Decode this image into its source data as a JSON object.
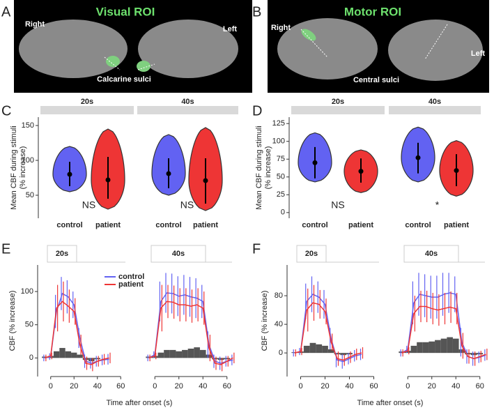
{
  "images": [
    {
      "label": "A",
      "title": "Visual ROI",
      "left": "Right",
      "right": "Left",
      "caption": "Calcarine sulci"
    },
    {
      "label": "B",
      "title": "Motor ROI",
      "left": "Right",
      "right": "Left",
      "caption": "Central sulci"
    }
  ],
  "chart_data": [
    {
      "type": "violin",
      "label": "C",
      "ylabel": [
        "Mean CBF during stimuli",
        "(% increase)"
      ],
      "ylim": [
        17,
        162
      ],
      "yticks": [
        50,
        100,
        150
      ],
      "facets": [
        {
          "title": "20s",
          "categories": [
            "control",
            "patient"
          ],
          "annotation": "NS",
          "violins": [
            {
              "color": "#6262f2",
              "min": 55,
              "max": 120,
              "mean": 80,
              "low": 63,
              "high": 98
            },
            {
              "color": "#ee3535",
              "min": 30,
              "max": 145,
              "mean": 72,
              "low": 45,
              "high": 105
            }
          ]
        },
        {
          "title": "40s",
          "categories": [
            "control",
            "patient"
          ],
          "annotation": "NS",
          "violins": [
            {
              "color": "#6262f2",
              "min": 50,
              "max": 137,
              "mean": 81,
              "low": 60,
              "high": 103
            },
            {
              "color": "#ee3535",
              "min": 28,
              "max": 147,
              "mean": 71,
              "low": 38,
              "high": 103
            }
          ]
        }
      ]
    },
    {
      "type": "violin",
      "label": "D",
      "ylabel": [
        "Mean CBF during stimuli",
        "(% increase)"
      ],
      "ylim": [
        -8,
        134
      ],
      "yticks": [
        0,
        25,
        50,
        75,
        100,
        125
      ],
      "facets": [
        {
          "title": "20s",
          "categories": [
            "control",
            "patient"
          ],
          "annotation": "NS",
          "violins": [
            {
              "color": "#6262f2",
              "min": 43,
              "max": 112,
              "mean": 70,
              "low": 48,
              "high": 92
            },
            {
              "color": "#ee3535",
              "min": 28,
              "max": 88,
              "mean": 58,
              "low": 42,
              "high": 76
            }
          ]
        },
        {
          "title": "40s",
          "categories": [
            "control",
            "patient"
          ],
          "annotation": "*",
          "violins": [
            {
              "color": "#6262f2",
              "min": 43,
              "max": 120,
              "mean": 77,
              "low": 55,
              "high": 98
            },
            {
              "color": "#ee3535",
              "min": 23,
              "max": 101,
              "mean": 59,
              "low": 37,
              "high": 82
            }
          ]
        }
      ]
    },
    {
      "type": "timecourse",
      "label": "E",
      "ylabel": "CBF (%  increase)",
      "xlabel": "Time after onset (s)",
      "xlim": [
        -10,
        70
      ],
      "xticks": [
        0,
        20,
        40,
        60
      ],
      "ylim": [
        -28,
        140
      ],
      "yticks": [
        0,
        50,
        100
      ],
      "legend": true,
      "bar_color": "#555555",
      "series": [
        {
          "name": "control",
          "color": "#6262f2"
        },
        {
          "name": "patient",
          "color": "#ee3535"
        }
      ],
      "facets": [
        {
          "title": "20s",
          "x": [
            -5,
            0,
            5,
            10,
            15,
            20,
            25,
            30,
            35,
            40,
            45,
            50
          ],
          "lines": [
            {
              "values": [
                0,
                2,
                70,
                97,
                92,
                80,
                30,
                -5,
                -8,
                -5,
                -3,
                -2
              ],
              "errors": [
                5,
                5,
                25,
                25,
                25,
                20,
                15,
                10,
                8,
                8,
                8,
                8
              ]
            },
            {
              "values": [
                0,
                3,
                75,
                85,
                78,
                70,
                20,
                -8,
                -10,
                -5,
                -2,
                0
              ],
              "errors": [
                5,
                5,
                35,
                30,
                25,
                20,
                15,
                10,
                10,
                8,
                8,
                8
              ]
            }
          ],
          "bars": [
            2,
            3,
            10,
            15,
            10,
            8,
            5,
            -3,
            -5,
            -2,
            0,
            0
          ]
        },
        {
          "title": "40s",
          "x": [
            -5,
            0,
            5,
            10,
            15,
            20,
            25,
            30,
            35,
            40,
            45,
            50,
            55,
            60,
            65
          ],
          "lines": [
            {
              "values": [
                0,
                5,
                85,
                98,
                97,
                93,
                95,
                92,
                90,
                85,
                20,
                -5,
                -8,
                -5,
                -3
              ],
              "errors": [
                5,
                5,
                30,
                30,
                30,
                30,
                30,
                30,
                30,
                25,
                20,
                10,
                10,
                8,
                8
              ]
            },
            {
              "values": [
                0,
                3,
                75,
                85,
                84,
                80,
                80,
                78,
                80,
                75,
                15,
                -8,
                -10,
                -5,
                0
              ],
              "errors": [
                5,
                5,
                35,
                25,
                25,
                25,
                25,
                25,
                25,
                25,
                20,
                10,
                10,
                8,
                8
              ]
            }
          ],
          "bars": [
            2,
            3,
            8,
            12,
            12,
            10,
            12,
            14,
            16,
            12,
            5,
            -2,
            -3,
            -2,
            0
          ]
        }
      ]
    },
    {
      "type": "timecourse",
      "label": "F",
      "ylabel": "CBF (%  increase)",
      "xlabel": "Time after onset (s)",
      "xlim": [
        -10,
        70
      ],
      "xticks": [
        0,
        20,
        40,
        60
      ],
      "ylim": [
        -33,
        123
      ],
      "yticks": [
        0,
        40,
        80
      ],
      "legend": false,
      "bar_color": "#555555",
      "series": [
        {
          "color": "#6262f2"
        },
        {
          "color": "#ee3535"
        }
      ],
      "facets": [
        {
          "title": "20s",
          "x": [
            -5,
            0,
            5,
            10,
            15,
            20,
            25,
            30,
            35,
            40,
            45,
            50
          ],
          "lines": [
            {
              "values": [
                0,
                2,
                72,
                82,
                78,
                68,
                20,
                -10,
                -12,
                -8,
                -4,
                -2
              ],
              "errors": [
                5,
                5,
                25,
                25,
                22,
                20,
                15,
                10,
                10,
                8,
                8,
                8
              ]
            },
            {
              "values": [
                0,
                2,
                60,
                70,
                68,
                58,
                15,
                -8,
                -10,
                -6,
                -2,
                0
              ],
              "errors": [
                5,
                5,
                30,
                25,
                20,
                18,
                12,
                10,
                8,
                8,
                8,
                8
              ]
            }
          ],
          "bars": [
            1,
            2,
            10,
            14,
            12,
            10,
            5,
            -2,
            -3,
            -2,
            0,
            0
          ]
        },
        {
          "title": "40s",
          "x": [
            -5,
            0,
            5,
            10,
            15,
            20,
            25,
            30,
            35,
            40,
            45,
            50,
            55,
            60,
            65
          ],
          "lines": [
            {
              "values": [
                0,
                5,
                70,
                82,
                80,
                78,
                78,
                82,
                84,
                82,
                15,
                -5,
                -8,
                -6,
                -3
              ],
              "errors": [
                5,
                5,
                30,
                30,
                30,
                30,
                30,
                30,
                28,
                25,
                20,
                10,
                10,
                8,
                8
              ]
            },
            {
              "values": [
                0,
                3,
                55,
                65,
                65,
                62,
                60,
                62,
                64,
                62,
                10,
                -5,
                -8,
                -5,
                -2
              ],
              "errors": [
                5,
                5,
                25,
                22,
                22,
                22,
                22,
                22,
                22,
                22,
                18,
                10,
                10,
                8,
                8
              ]
            }
          ],
          "bars": [
            2,
            3,
            10,
            15,
            15,
            16,
            18,
            20,
            22,
            20,
            5,
            -2,
            -3,
            -2,
            0
          ]
        }
      ]
    }
  ]
}
